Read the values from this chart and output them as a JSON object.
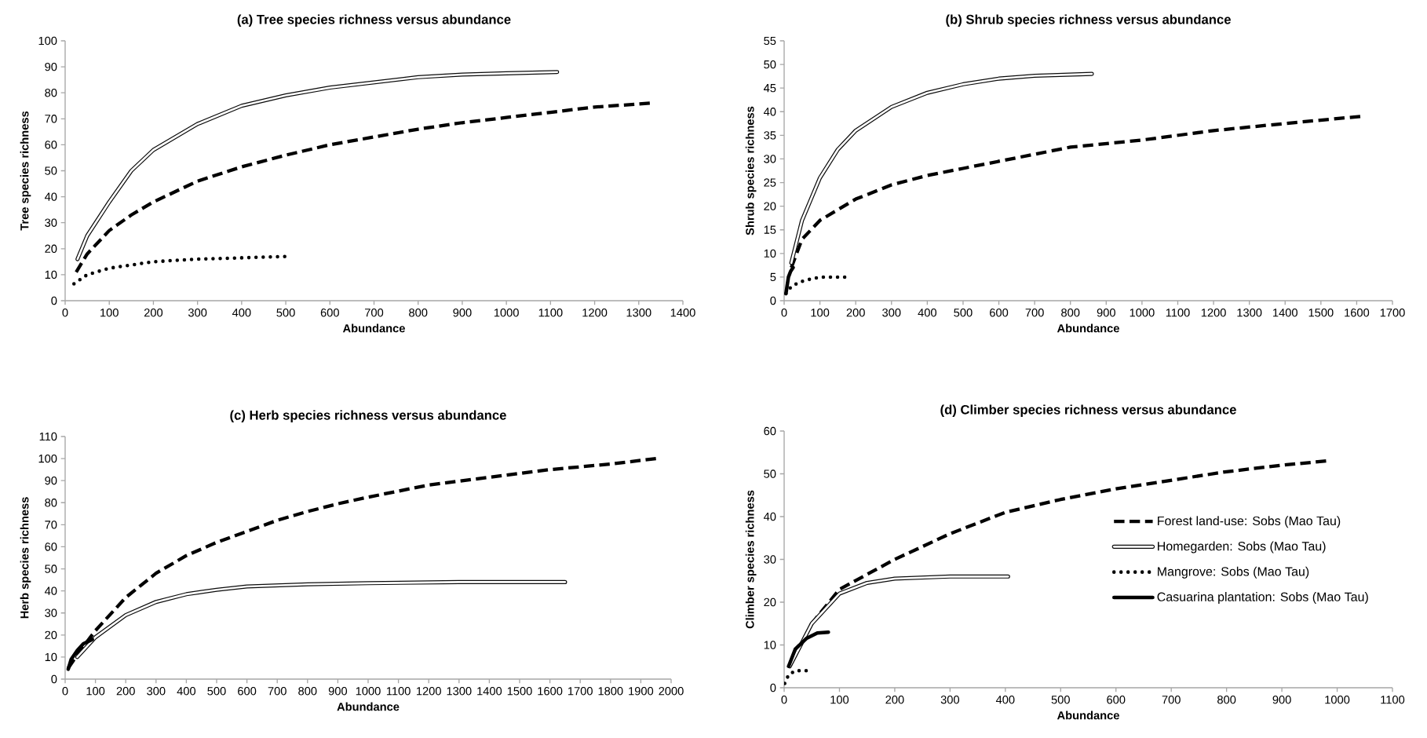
{
  "chart_data": [
    {
      "type": "line",
      "title": "(a) Tree species richness versus abundance",
      "xlabel": "Abundance",
      "ylabel": "Tree species richness",
      "xlim": [
        0,
        1400
      ],
      "ylim": [
        0,
        100
      ],
      "xticks": [
        0,
        100,
        200,
        300,
        400,
        500,
        600,
        700,
        800,
        900,
        1000,
        1100,
        1200,
        1300,
        1400
      ],
      "yticks": [
        0,
        10,
        20,
        30,
        40,
        50,
        60,
        70,
        80,
        90,
        100
      ],
      "grid": false,
      "legend": false,
      "marker": "none",
      "series": [
        {
          "color": "#000000",
          "line_style": "dashed",
          "x": [
            25,
            50,
            100,
            150,
            200,
            300,
            400,
            500,
            600,
            700,
            800,
            900,
            1000,
            1100,
            1200,
            1325
          ],
          "values": [
            11,
            18,
            27,
            33,
            38,
            46,
            51.5,
            56,
            60,
            63,
            66,
            68.5,
            70.5,
            72.5,
            74.5,
            76
          ]
        },
        {
          "color": "#0a0a0a",
          "line_style": "solid",
          "x": [
            28,
            50,
            100,
            150,
            200,
            300,
            400,
            500,
            600,
            700,
            800,
            900,
            1000,
            1115
          ],
          "values": [
            16,
            25,
            38,
            50,
            58,
            68,
            75,
            79,
            82,
            84,
            86,
            87,
            87.5,
            88
          ]
        },
        {
          "color": "#000000",
          "line_style": "dotted",
          "x": [
            20,
            50,
            100,
            200,
            300,
            400,
            500
          ],
          "values": [
            6.5,
            10,
            12.5,
            15,
            16,
            16.5,
            17
          ]
        }
      ]
    },
    {
      "type": "line",
      "title": "(b) Shrub species richness versus abundance",
      "xlabel": "Abundance",
      "ylabel": "Shrub species richness",
      "xlim": [
        0,
        1700
      ],
      "ylim": [
        0,
        55
      ],
      "xticks": [
        0,
        100,
        200,
        300,
        400,
        500,
        600,
        700,
        800,
        900,
        1000,
        1100,
        1200,
        1300,
        1400,
        1500,
        1600,
        1700
      ],
      "yticks": [
        0,
        5,
        10,
        15,
        20,
        25,
        30,
        35,
        40,
        45,
        50,
        55
      ],
      "grid": false,
      "legend": false,
      "marker": "none",
      "series": [
        {
          "color": "#000000",
          "line_style": "dashed",
          "x": [
            20,
            50,
            100,
            200,
            300,
            400,
            500,
            600,
            800,
            1000,
            1200,
            1400,
            1610
          ],
          "values": [
            7,
            13,
            17,
            21.5,
            24.5,
            26.5,
            28,
            29.5,
            32.5,
            34,
            36,
            37.5,
            39
          ]
        },
        {
          "color": "#0a0a0a",
          "line_style": "solid",
          "x": [
            20,
            50,
            100,
            150,
            200,
            300,
            400,
            500,
            600,
            700,
            860
          ],
          "values": [
            8,
            17,
            26,
            32,
            36,
            41,
            44,
            45.8,
            47,
            47.6,
            48
          ]
        },
        {
          "color": "#000000",
          "line_style": "dotted",
          "x": [
            5,
            20,
            45,
            70,
            100,
            170
          ],
          "values": [
            1.5,
            3,
            4,
            4.5,
            5,
            5
          ]
        },
        {
          "color": "#000000",
          "line_style": "solid",
          "x": [
            5,
            8,
            12,
            18,
            25
          ],
          "values": [
            1.5,
            3,
            5,
            6.2,
            7
          ]
        }
      ]
    },
    {
      "type": "line",
      "title": "(c) Herb species richness versus abundance",
      "xlabel": "Abundance",
      "ylabel": "Herb species richness",
      "xlim": [
        0,
        2000
      ],
      "ylim": [
        0,
        110
      ],
      "xticks": [
        0,
        100,
        200,
        300,
        400,
        500,
        600,
        700,
        800,
        900,
        1000,
        1100,
        1200,
        1300,
        1400,
        1500,
        1600,
        1700,
        1800,
        1900,
        2000
      ],
      "yticks": [
        0,
        10,
        20,
        30,
        40,
        50,
        60,
        70,
        80,
        90,
        100,
        110
      ],
      "grid": false,
      "legend": false,
      "marker": "none",
      "series": [
        {
          "color": "#000000",
          "line_style": "dashed",
          "x": [
            10,
            50,
            100,
            200,
            300,
            400,
            500,
            600,
            700,
            800,
            900,
            1000,
            1200,
            1400,
            1600,
            1800,
            1950
          ],
          "values": [
            5,
            13,
            22,
            37,
            48,
            56,
            62,
            67,
            72,
            76,
            79.5,
            82.5,
            88,
            91.5,
            95,
            97.5,
            100
          ]
        },
        {
          "color": "#0a0a0a",
          "line_style": "solid",
          "x": [
            40,
            100,
            200,
            300,
            400,
            500,
            600,
            800,
            1000,
            1300,
            1650
          ],
          "values": [
            10,
            19,
            29,
            35,
            38.5,
            40.5,
            42,
            43,
            43.5,
            44,
            44
          ]
        },
        {
          "color": "#000000",
          "line_style": "solid",
          "x": [
            10,
            20,
            40,
            60,
            90
          ],
          "values": [
            4.5,
            9,
            13,
            16,
            18
          ]
        }
      ]
    },
    {
      "type": "line",
      "title": "(d) Climber species richness versus abundance",
      "xlabel": "Abundance",
      "ylabel": "Climber species richness",
      "xlim": [
        0,
        1100
      ],
      "ylim": [
        0,
        60
      ],
      "xticks": [
        0,
        100,
        200,
        300,
        400,
        500,
        600,
        700,
        800,
        900,
        1000,
        1100
      ],
      "yticks": [
        0,
        10,
        20,
        30,
        40,
        50,
        60
      ],
      "grid": false,
      "legend": "right",
      "marker": "none",
      "series": [
        {
          "name": "Forest land-use: Sobs (Mao Tau)",
          "color": "#000000",
          "line_style": "dashed",
          "x": [
            10,
            50,
            100,
            200,
            300,
            400,
            500,
            600,
            700,
            800,
            900,
            980
          ],
          "values": [
            5,
            15,
            23,
            30,
            36,
            41,
            44,
            46.5,
            48.5,
            50.5,
            52,
            53
          ]
        },
        {
          "name": "Homegarden: Sobs (Mao Tau)",
          "color": "#0a0a0a",
          "line_style": "solid",
          "x": [
            10,
            50,
            100,
            150,
            200,
            300,
            405
          ],
          "values": [
            5,
            15,
            22,
            24.5,
            25.5,
            26,
            26
          ]
        },
        {
          "name": "Mangrove: Sobs (Mao Tau)",
          "color": "#000000",
          "line_style": "dotted",
          "x": [
            1,
            8,
            20,
            40
          ],
          "values": [
            1,
            3,
            4,
            4
          ]
        },
        {
          "name": "Casuarina plantation: Sobs (Mao Tau)",
          "color": "#000000",
          "line_style": "solid",
          "x": [
            8,
            20,
            40,
            60,
            80
          ],
          "values": [
            5,
            9,
            11.5,
            12.8,
            13
          ]
        }
      ]
    }
  ]
}
